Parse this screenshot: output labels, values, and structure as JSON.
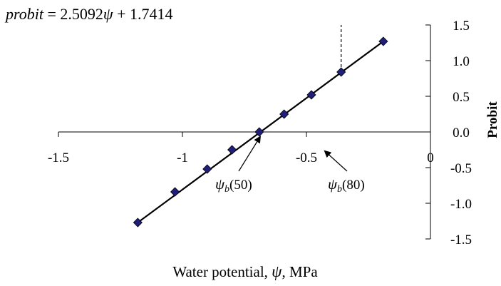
{
  "chart_data": {
    "type": "scatter",
    "title": "",
    "equation": {
      "lhs": "probit",
      "rhs_prefix": " = 2.5092",
      "psi": "ψ",
      "rhs_suffix": " + 1.7414",
      "slope": 2.5092,
      "intercept": 1.7414
    },
    "xlabel": "Water potential, ψ, MPa",
    "xlabel_parts": {
      "pre": "Water potential, ",
      "psi": "ψ",
      "post": ", MPa"
    },
    "ylabel": "Probit",
    "xlim": [
      -1.5,
      0
    ],
    "ylim": [
      -1.5,
      1.5
    ],
    "x_ticks": [
      {
        "value": -1.5,
        "label": "-1.5"
      },
      {
        "value": -1.0,
        "label": "-1"
      },
      {
        "value": -0.5,
        "label": "-0.5"
      },
      {
        "value": 0.0,
        "label": "0"
      }
    ],
    "y_ticks": [
      {
        "value": 1.5,
        "label": "1.5"
      },
      {
        "value": 1.0,
        "label": "1.0"
      },
      {
        "value": 0.5,
        "label": "0.5"
      },
      {
        "value": 0.0,
        "label": "0.0"
      },
      {
        "value": -0.5,
        "label": "-0.5"
      },
      {
        "value": -1.0,
        "label": "-1.0"
      },
      {
        "value": -1.5,
        "label": "-1.5"
      }
    ],
    "points": [
      {
        "x": -1.18,
        "y": -1.27
      },
      {
        "x": -1.03,
        "y": -0.84
      },
      {
        "x": -0.9,
        "y": -0.52
      },
      {
        "x": -0.8,
        "y": -0.25
      },
      {
        "x": -0.69,
        "y": 0.0
      },
      {
        "x": -0.59,
        "y": 0.25
      },
      {
        "x": -0.48,
        "y": 0.52
      },
      {
        "x": -0.36,
        "y": 0.84
      },
      {
        "x": -0.19,
        "y": 1.27
      }
    ],
    "marker_color": "#1f1f7a",
    "line_color": "#000000",
    "fit_line": {
      "x_start": -1.18,
      "x_end": -0.19
    },
    "reference_line": {
      "x": -0.36,
      "from_y": 0.84,
      "to_y": 1.5,
      "style": "dashed"
    },
    "annotations": [
      {
        "psi": "ψ",
        "sub": "b",
        "text": "(50)",
        "target": {
          "x": -0.69,
          "y": 0.0
        }
      },
      {
        "psi": "ψ",
        "sub": "b",
        "text": "(80)",
        "target": {
          "x": -0.36,
          "y": 0.0
        }
      }
    ]
  }
}
